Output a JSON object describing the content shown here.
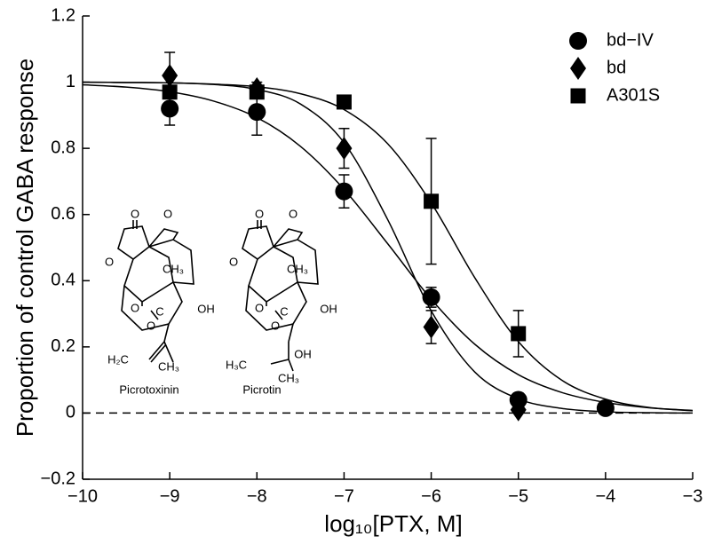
{
  "chart_data": {
    "type": "scatter",
    "xlabel": "log₁₀[PTX, M]",
    "ylabel": "Proportion of control GABA response",
    "x": [
      -9,
      -8,
      -7,
      -6,
      -5,
      -4
    ],
    "series": [
      {
        "name": "bd−IV",
        "marker": "circle",
        "color": "#000000",
        "values": [
          0.92,
          0.91,
          0.67,
          0.35,
          0.04,
          0.015
        ],
        "errors": [
          0.05,
          0.07,
          0.05,
          0.03,
          0.01,
          0.01
        ]
      },
      {
        "name": "bd",
        "marker": "diamond",
        "color": "#000000",
        "values": [
          1.02,
          0.98,
          0.8,
          0.26,
          0.01,
          null
        ],
        "errors": [
          0.07,
          0.02,
          0.06,
          0.05,
          0.01,
          null
        ]
      },
      {
        "name": "A301S",
        "marker": "square",
        "color": "#000000",
        "values": [
          0.97,
          0.97,
          0.94,
          0.64,
          0.24,
          null
        ],
        "errors": [
          0.02,
          0.02,
          0.02,
          0.19,
          0.07,
          null
        ]
      }
    ],
    "fit_curves": {
      "x": [
        -10,
        -9.5,
        -9,
        -8.5,
        -8,
        -7.5,
        -7,
        -6.5,
        -6,
        -5.5,
        -5,
        -4.5,
        -4,
        -3.5,
        -3
      ],
      "series": [
        {
          "color": "#000000",
          "values": [
            0.992,
            0.985,
            0.971,
            0.943,
            0.893,
            0.806,
            0.676,
            0.512,
            0.344,
            0.208,
            0.116,
            0.062,
            0.032,
            0.016,
            0.008
          ]
        },
        {
          "color": "#000000",
          "values": [
            1.0,
            0.999,
            0.998,
            0.993,
            0.978,
            0.934,
            0.817,
            0.585,
            0.309,
            0.124,
            0.043,
            0.014,
            0.004,
            0.001,
            0.0
          ]
        },
        {
          "color": "#000000",
          "values": [
            1.0,
            0.999,
            0.998,
            0.994,
            0.986,
            0.965,
            0.917,
            0.814,
            0.635,
            0.409,
            0.216,
            0.099,
            0.042,
            0.017,
            0.007
          ]
        }
      ]
    },
    "reference_line": {
      "y": 0,
      "style": "dashed"
    },
    "xlim": [
      -10,
      -3
    ],
    "xticks": [
      {
        "value": -10,
        "label": "−10"
      },
      {
        "value": -9,
        "label": "−9"
      },
      {
        "value": -8,
        "label": "−8"
      },
      {
        "value": -7,
        "label": "−7"
      },
      {
        "value": -6,
        "label": "−6"
      },
      {
        "value": -5,
        "label": "−5"
      },
      {
        "value": -4,
        "label": "−4"
      },
      {
        "value": -3,
        "label": "−3"
      }
    ],
    "ylim": [
      -0.2,
      1.2
    ],
    "yticks": [
      {
        "value": -0.2,
        "label": "−0.2"
      },
      0,
      0.2,
      0.4,
      0.6,
      0.8,
      1,
      1.2
    ],
    "legend": "upper right",
    "structures": [
      {
        "name": "Picrotoxinin",
        "labels": [
          "O",
          "O",
          "O",
          "CH₃",
          "O",
          "C",
          "O",
          "OH",
          "H₂C",
          "CH₃"
        ]
      },
      {
        "name": "Picrotin",
        "labels": [
          "O",
          "O",
          "O",
          "CH₃",
          "O",
          "C",
          "O",
          "OH",
          "H₃C",
          "OH",
          "CH₃"
        ]
      }
    ]
  }
}
